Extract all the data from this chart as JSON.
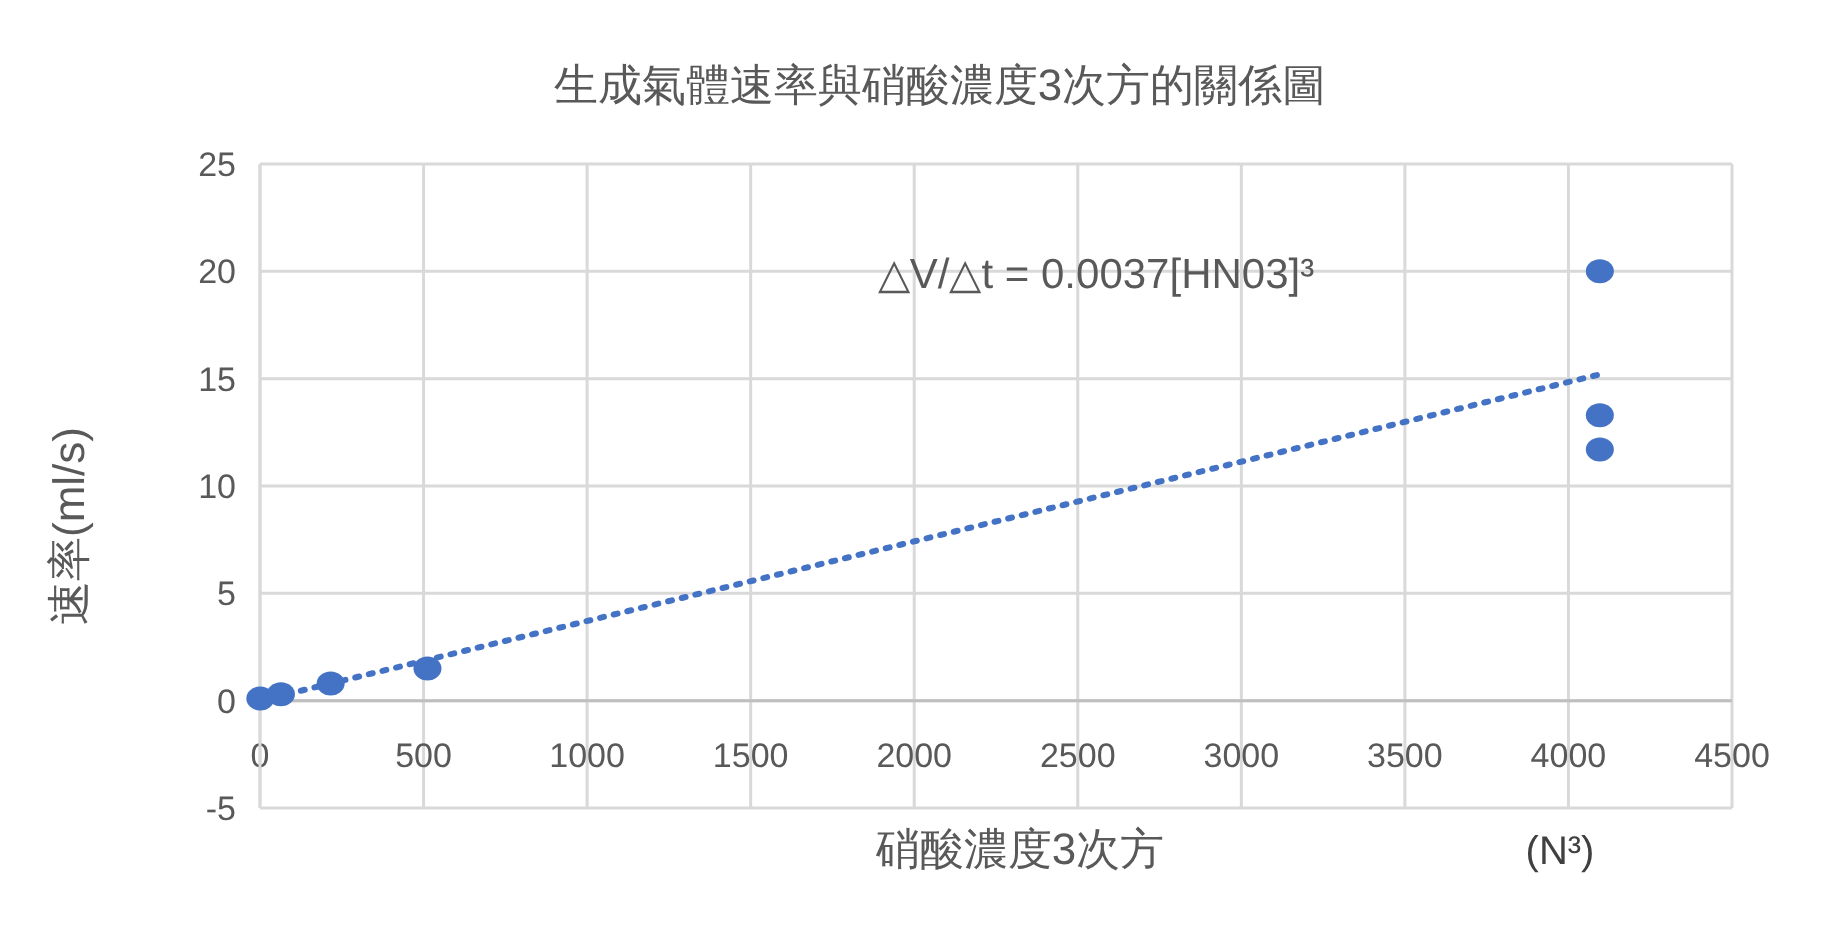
{
  "chart_data": {
    "type": "scatter",
    "title": "生成氣體速率與硝酸濃度3次方的關係圖",
    "xlabel": "硝酸濃度3次方",
    "ylabel": "速率(ml/s)",
    "annotations": [
      "△V/△t = 0.0037[HN03]³",
      "(N³)"
    ],
    "series": [
      {
        "color": "#4472c4",
        "marker": "circle",
        "x": [
          1,
          64,
          216,
          512,
          4096,
          4096,
          4096
        ],
        "values": [
          0.1,
          0.3,
          0.8,
          1.5,
          20,
          13.3,
          11.7
        ]
      },
      {
        "type": "line",
        "color": "#4472c4",
        "line_style": "dotted",
        "x": [
          0,
          4096
        ],
        "values": [
          0,
          15.2
        ]
      }
    ],
    "xlim": [
      0,
      4500
    ],
    "xticks": [
      0,
      500,
      1000,
      1500,
      2000,
      2500,
      3000,
      3500,
      4000,
      4500
    ],
    "ylim": [
      -5,
      25
    ],
    "yticks": [
      -5,
      0,
      5,
      10,
      15,
      20,
      25
    ],
    "grid": true
  }
}
